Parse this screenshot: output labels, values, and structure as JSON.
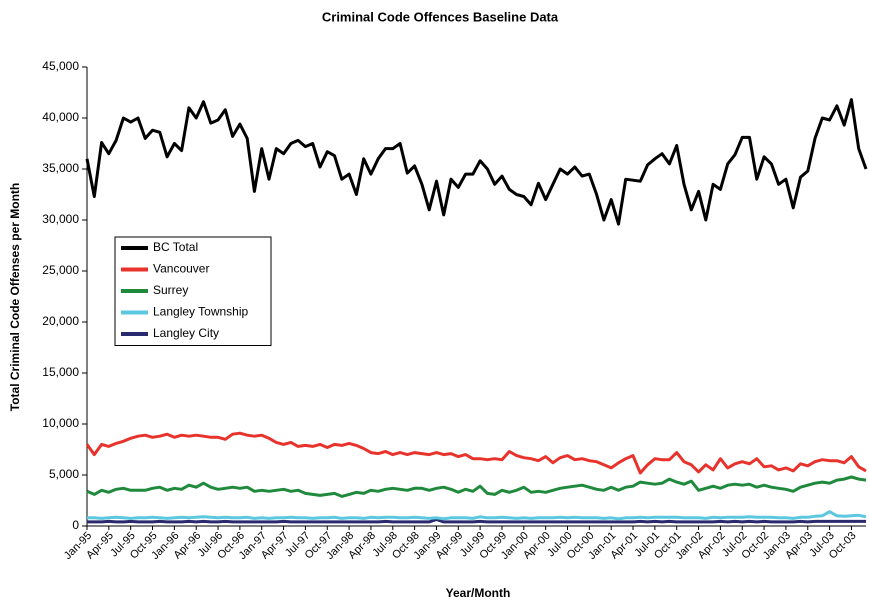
{
  "chart_data": {
    "type": "line",
    "title": "Criminal Code Offences Baseline Data",
    "x_label": "Year/Month",
    "y_label": "Total Criminal Code Offenses per Month",
    "categories": [
      "Jan-95",
      null,
      null,
      "Apr-95",
      null,
      null,
      "Jul-95",
      null,
      null,
      "Oct-95",
      null,
      null,
      "Jan-96",
      null,
      null,
      "Apr-96",
      null,
      null,
      "Jul-96",
      null,
      null,
      "Oct-96",
      null,
      null,
      "Jan-97",
      null,
      null,
      "Apr-97",
      null,
      null,
      "Jul-97",
      null,
      null,
      "Oct-97",
      null,
      null,
      "Jan-98",
      null,
      null,
      "Apr-98",
      null,
      null,
      "Jul-98",
      null,
      null,
      "Oct-98",
      null,
      null,
      "Jan-99",
      null,
      null,
      "Apr-99",
      null,
      null,
      "Jul-99",
      null,
      null,
      "Oct-99",
      null,
      null,
      "Jan-00",
      null,
      null,
      "Apr-00",
      null,
      null,
      "Jul-00",
      null,
      null,
      "Oct-00",
      null,
      null,
      "Jan-01",
      null,
      null,
      "Apr-01",
      null,
      null,
      "Jul-01",
      null,
      null,
      "Oct-01",
      null,
      null,
      "Jan-02",
      null,
      null,
      "Apr-02",
      null,
      null,
      "Jul-02",
      null,
      null,
      "Oct-02",
      null,
      null,
      "Jan-03",
      null,
      null,
      "Apr-03",
      null,
      null,
      "Jul-03",
      null,
      null,
      "Oct-03",
      null,
      null
    ],
    "series": [
      {
        "name": "BC Total",
        "color": "#000000",
        "values": [
          36000,
          32300,
          37600,
          36500,
          37800,
          40000,
          39600,
          40000,
          38000,
          38800,
          38600,
          36200,
          37500,
          36800,
          41000,
          40000,
          41600,
          39500,
          39800,
          40800,
          38200,
          39400,
          38000,
          32800,
          37000,
          34000,
          37000,
          36500,
          37500,
          37800,
          37200,
          37500,
          35200,
          36700,
          36300,
          34000,
          34500,
          32500,
          36000,
          34500,
          36000,
          37000,
          37000,
          37500,
          34600,
          35300,
          33500,
          31000,
          33800,
          30500,
          34000,
          33200,
          34500,
          34500,
          35800,
          35000,
          33500,
          34300,
          33000,
          32500,
          32300,
          31500,
          33600,
          32000,
          33500,
          35000,
          34500,
          35200,
          34300,
          34500,
          32500,
          30000,
          32000,
          29600,
          34000,
          33900,
          33800,
          35400,
          36000,
          36500,
          35500,
          37300,
          33500,
          31000,
          32800,
          30000,
          33500,
          33000,
          35500,
          36400,
          38100,
          38100,
          34000,
          36200,
          35500,
          33500,
          34000,
          31200,
          34200,
          34800,
          38000,
          40000,
          39800,
          41200,
          39300,
          41800,
          37000,
          35000
        ]
      },
      {
        "name": "Vancouver",
        "color": "#e8322c",
        "values": [
          8000,
          7000,
          8000,
          7800,
          8100,
          8300,
          8600,
          8800,
          8900,
          8700,
          8800,
          9000,
          8700,
          8900,
          8800,
          8900,
          8800,
          8700,
          8700,
          8500,
          9000,
          9100,
          8900,
          8800,
          8900,
          8600,
          8200,
          8000,
          8200,
          7800,
          7900,
          7800,
          8000,
          7700,
          8000,
          7900,
          8100,
          7900,
          7600,
          7200,
          7100,
          7300,
          7000,
          7200,
          7000,
          7200,
          7100,
          7000,
          7200,
          7000,
          7100,
          6800,
          7000,
          6600,
          6600,
          6500,
          6600,
          6500,
          7300,
          6900,
          6700,
          6600,
          6400,
          6800,
          6200,
          6700,
          6900,
          6500,
          6600,
          6400,
          6300,
          6000,
          5700,
          6200,
          6600,
          6900,
          5200,
          6000,
          6600,
          6500,
          6500,
          7200,
          6300,
          6000,
          5300,
          6000,
          5500,
          6600,
          5700,
          6100,
          6300,
          6100,
          6600,
          5800,
          5900,
          5500,
          5700,
          5400,
          6100,
          5900,
          6300,
          6500,
          6400,
          6400,
          6200,
          6800,
          5800,
          5400
        ]
      },
      {
        "name": "Surrey",
        "color": "#1f8a3c",
        "values": [
          3400,
          3100,
          3500,
          3300,
          3600,
          3700,
          3500,
          3500,
          3500,
          3700,
          3800,
          3500,
          3700,
          3600,
          4000,
          3800,
          4200,
          3800,
          3600,
          3700,
          3800,
          3700,
          3800,
          3400,
          3500,
          3400,
          3500,
          3600,
          3400,
          3500,
          3200,
          3100,
          3000,
          3100,
          3200,
          2900,
          3100,
          3300,
          3200,
          3500,
          3400,
          3600,
          3700,
          3600,
          3500,
          3700,
          3700,
          3500,
          3700,
          3800,
          3600,
          3300,
          3600,
          3400,
          3900,
          3200,
          3100,
          3500,
          3300,
          3500,
          3800,
          3300,
          3400,
          3300,
          3500,
          3700,
          3800,
          3900,
          4000,
          3800,
          3600,
          3500,
          3800,
          3500,
          3800,
          3900,
          4300,
          4200,
          4100,
          4200,
          4600,
          4300,
          4100,
          4400,
          3500,
          3700,
          3900,
          3700,
          4000,
          4100,
          4000,
          4100,
          3800,
          4000,
          3800,
          3700,
          3600,
          3400,
          3800,
          4000,
          4200,
          4300,
          4200,
          4500,
          4600,
          4800,
          4600,
          4500
        ]
      },
      {
        "name": "Langley Township",
        "color": "#5bc8e0",
        "values": [
          800,
          800,
          750,
          800,
          850,
          800,
          750,
          800,
          800,
          850,
          800,
          750,
          800,
          850,
          800,
          850,
          900,
          850,
          800,
          850,
          800,
          800,
          850,
          750,
          800,
          750,
          800,
          800,
          850,
          800,
          800,
          750,
          800,
          800,
          850,
          750,
          800,
          800,
          750,
          850,
          800,
          850,
          850,
          800,
          800,
          850,
          800,
          750,
          800,
          700,
          800,
          800,
          800,
          750,
          900,
          800,
          800,
          850,
          800,
          750,
          800,
          750,
          800,
          800,
          800,
          850,
          800,
          850,
          800,
          800,
          800,
          750,
          800,
          700,
          800,
          800,
          850,
          800,
          850,
          850,
          850,
          850,
          800,
          800,
          800,
          750,
          850,
          800,
          850,
          850,
          850,
          900,
          850,
          850,
          850,
          800,
          800,
          750,
          850,
          850,
          950,
          1000,
          1400,
          1000,
          950,
          1000,
          1050,
          900
        ]
      },
      {
        "name": "Langley City",
        "color": "#2a2a6e",
        "values": [
          400,
          400,
          400,
          450,
          400,
          400,
          450,
          400,
          400,
          400,
          450,
          400,
          400,
          400,
          450,
          400,
          450,
          400,
          400,
          450,
          400,
          400,
          400,
          400,
          400,
          400,
          400,
          450,
          400,
          400,
          400,
          400,
          400,
          400,
          400,
          400,
          400,
          400,
          400,
          400,
          400,
          450,
          400,
          400,
          400,
          400,
          400,
          400,
          650,
          400,
          400,
          400,
          400,
          400,
          450,
          400,
          400,
          400,
          400,
          400,
          400,
          400,
          400,
          400,
          400,
          400,
          400,
          400,
          400,
          400,
          400,
          400,
          400,
          400,
          400,
          400,
          450,
          400,
          450,
          400,
          450,
          400,
          400,
          400,
          400,
          400,
          400,
          450,
          400,
          450,
          400,
          450,
          400,
          450,
          400,
          400,
          400,
          400,
          450,
          400,
          450,
          450,
          450,
          450,
          450,
          450,
          450,
          450
        ]
      }
    ],
    "ylim": [
      0,
      45000
    ],
    "yticks": [
      0,
      {
        "value": 5000,
        "label": "5,000"
      },
      {
        "value": 10000,
        "label": "10,000"
      },
      {
        "value": 15000,
        "label": "15,000"
      },
      {
        "value": 20000,
        "label": "20,000"
      },
      {
        "value": 25000,
        "label": "25,000"
      },
      {
        "value": 30000,
        "label": "30,000"
      },
      {
        "value": 35000,
        "label": "35,000"
      },
      {
        "value": 40000,
        "label": "40,000"
      },
      {
        "value": 45000,
        "label": "45,000"
      }
    ],
    "grid": false,
    "legend": "left"
  }
}
